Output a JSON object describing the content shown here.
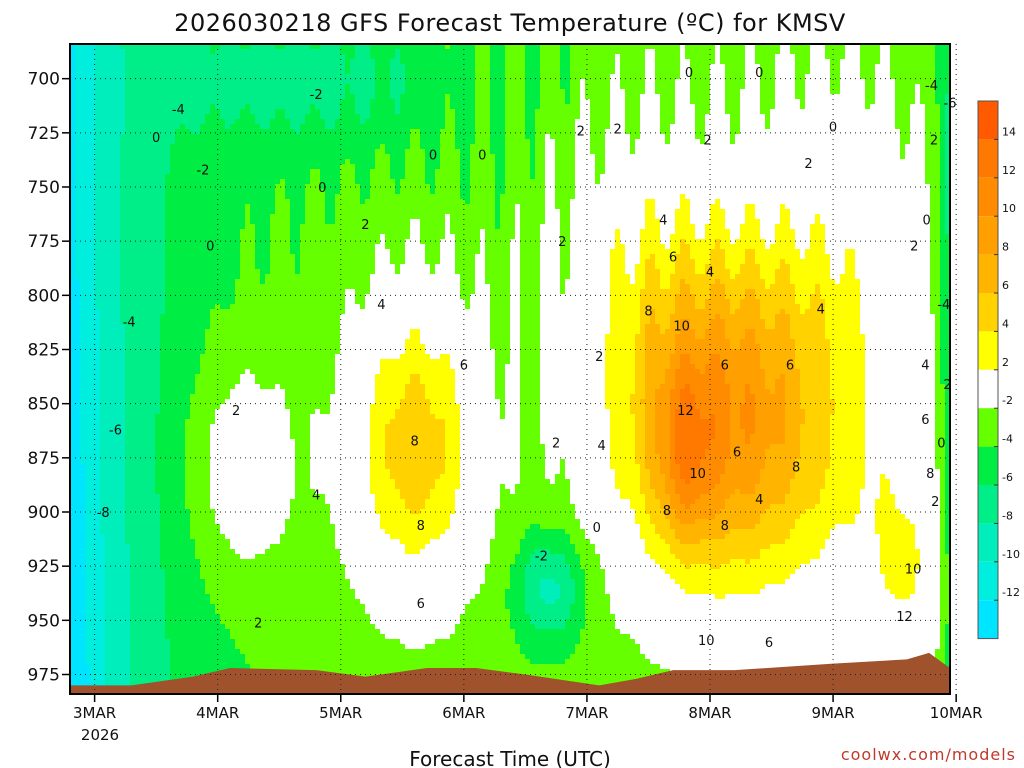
{
  "chart_data": {
    "type": "heatmap",
    "title": "2026030218 GFS Forecast Temperature (ºC) for KMSV",
    "xlabel": "Forecast Time (UTC)",
    "ylabel": "",
    "credit": "coolwx.com/models",
    "x_ticks": [
      "3MAR",
      "4MAR",
      "5MAR",
      "6MAR",
      "7MAR",
      "8MAR",
      "9MAR",
      "10MAR"
    ],
    "x_subtick": "2026",
    "x_range_days": [
      0,
      7.15
    ],
    "y_ticks": [
      700,
      725,
      750,
      775,
      800,
      825,
      850,
      875,
      900,
      925,
      950,
      975
    ],
    "y_range_hpa": [
      684,
      984
    ],
    "colorbar": {
      "labels": [
        14,
        12,
        10,
        8,
        6,
        4,
        2,
        -2,
        -4,
        -6,
        -8,
        -10,
        -12
      ],
      "levels": [
        {
          "range": "14-16",
          "color": "#ff5a00"
        },
        {
          "range": "12-14",
          "color": "#ff7800"
        },
        {
          "range": "10-12",
          "color": "#ff8c00"
        },
        {
          "range": "8-10",
          "color": "#ffa000"
        },
        {
          "range": "6-8",
          "color": "#ffb400"
        },
        {
          "range": "4-6",
          "color": "#ffd200"
        },
        {
          "range": "2-4",
          "color": "#ffff00"
        },
        {
          "range": "-2-2",
          "color": "#ffffff"
        },
        {
          "range": "-4--2",
          "color": "#66ff00"
        },
        {
          "range": "-6--4",
          "color": "#00ee44"
        },
        {
          "range": "-8--6",
          "color": "#00ee88"
        },
        {
          "range": "-10--8",
          "color": "#00eebb"
        },
        {
          "range": "-12--10",
          "color": "#00eedd"
        },
        {
          "range": "-14--12",
          "color": "#00e5ff"
        }
      ]
    },
    "terrain_color": "#a0522d",
    "contour_labels": [
      {
        "text": "0",
        "t": 5.03,
        "p": 697
      },
      {
        "text": "0",
        "t": 5.6,
        "p": 697
      },
      {
        "text": "-4",
        "t": 7.0,
        "p": 703
      },
      {
        "text": "-6",
        "t": 7.15,
        "p": 711
      },
      {
        "text": "-4",
        "t": 0.88,
        "p": 714
      },
      {
        "text": "-2",
        "t": 2.0,
        "p": 707
      },
      {
        "text": "0",
        "t": 0.7,
        "p": 727
      },
      {
        "text": "0",
        "t": 2.95,
        "p": 735
      },
      {
        "text": "0",
        "t": 3.35,
        "p": 735
      },
      {
        "text": "-2",
        "t": 1.08,
        "p": 742
      },
      {
        "text": "0",
        "t": 2.05,
        "p": 750
      },
      {
        "text": "2",
        "t": 4.45,
        "p": 723
      },
      {
        "text": "2",
        "t": 4.15,
        "p": 724
      },
      {
        "text": "2",
        "t": 5.18,
        "p": 728
      },
      {
        "text": "0",
        "t": 6.2,
        "p": 722
      },
      {
        "text": "2",
        "t": 7.02,
        "p": 728
      },
      {
        "text": "2",
        "t": 6.0,
        "p": 739
      },
      {
        "text": "2",
        "t": 4.0,
        "p": 775
      },
      {
        "text": "2",
        "t": 2.4,
        "p": 767
      },
      {
        "text": "0",
        "t": 1.14,
        "p": 777
      },
      {
        "text": "4",
        "t": 4.82,
        "p": 765
      },
      {
        "text": "6",
        "t": 4.9,
        "p": 782
      },
      {
        "text": "4",
        "t": 5.2,
        "p": 789
      },
      {
        "text": "0",
        "t": 6.96,
        "p": 765
      },
      {
        "text": "2",
        "t": 6.86,
        "p": 777
      },
      {
        "text": "4",
        "t": 6.1,
        "p": 806
      },
      {
        "text": "-4",
        "t": 7.1,
        "p": 804
      },
      {
        "text": "4",
        "t": 2.53,
        "p": 804
      },
      {
        "text": "8",
        "t": 4.7,
        "p": 807
      },
      {
        "text": "-4",
        "t": 0.48,
        "p": 812
      },
      {
        "text": "10",
        "t": 4.97,
        "p": 814
      },
      {
        "text": "2",
        "t": 4.3,
        "p": 828
      },
      {
        "text": "6",
        "t": 3.2,
        "p": 832
      },
      {
        "text": "6",
        "t": 5.32,
        "p": 832
      },
      {
        "text": "6",
        "t": 5.85,
        "p": 832
      },
      {
        "text": "4",
        "t": 6.95,
        "p": 832
      },
      {
        "text": "2",
        "t": 1.35,
        "p": 853
      },
      {
        "text": "2",
        "t": 7.13,
        "p": 841
      },
      {
        "text": "12",
        "t": 5.0,
        "p": 853
      },
      {
        "text": "6",
        "t": 6.95,
        "p": 857
      },
      {
        "text": "-6",
        "t": 0.37,
        "p": 862
      },
      {
        "text": "8",
        "t": 2.8,
        "p": 867
      },
      {
        "text": "2",
        "t": 3.95,
        "p": 868
      },
      {
        "text": "4",
        "t": 4.32,
        "p": 869
      },
      {
        "text": "6",
        "t": 5.42,
        "p": 872
      },
      {
        "text": "0",
        "t": 7.08,
        "p": 868
      },
      {
        "text": "8",
        "t": 5.9,
        "p": 879
      },
      {
        "text": "8",
        "t": 6.99,
        "p": 882
      },
      {
        "text": "10",
        "t": 5.1,
        "p": 882
      },
      {
        "text": "4",
        "t": 2.0,
        "p": 892
      },
      {
        "text": "4",
        "t": 5.6,
        "p": 894
      },
      {
        "text": "2",
        "t": 7.03,
        "p": 895
      },
      {
        "text": "-8",
        "t": 0.27,
        "p": 900
      },
      {
        "text": "8",
        "t": 4.85,
        "p": 899
      },
      {
        "text": "8",
        "t": 2.85,
        "p": 906
      },
      {
        "text": "8",
        "t": 5.32,
        "p": 906
      },
      {
        "text": "0",
        "t": 4.28,
        "p": 907
      },
      {
        "text": "-2",
        "t": 3.83,
        "p": 920
      },
      {
        "text": "10",
        "t": 6.85,
        "p": 926
      },
      {
        "text": "6",
        "t": 2.85,
        "p": 942
      },
      {
        "text": "2",
        "t": 1.53,
        "p": 951
      },
      {
        "text": "12",
        "t": 6.78,
        "p": 948
      },
      {
        "text": "10",
        "t": 5.17,
        "p": 959
      },
      {
        "text": "6",
        "t": 5.68,
        "p": 960
      }
    ]
  }
}
